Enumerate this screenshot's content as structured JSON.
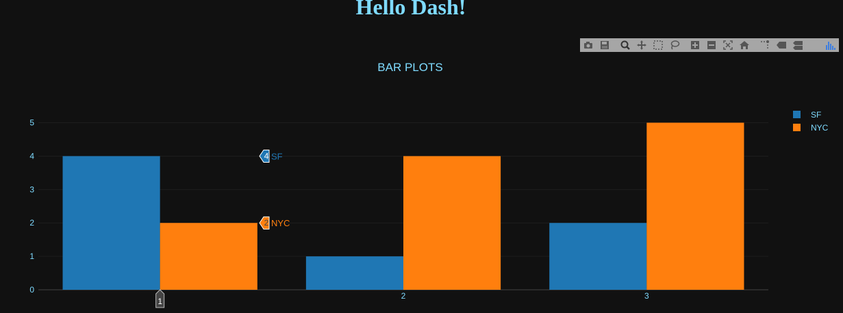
{
  "page": {
    "heading": "Hello Dash!"
  },
  "modebar": {
    "groups": [
      [
        "camera-icon",
        "save-icon"
      ],
      [
        "zoom-icon",
        "pan-icon",
        "box-select-icon",
        "lasso-select-icon"
      ],
      [
        "zoom-in-icon",
        "zoom-out-icon",
        "autoscale-icon",
        "reset-axes-icon"
      ],
      [
        "spike-lines-icon",
        "hover-closest-icon",
        "hover-compare-icon"
      ],
      [
        "plotly-logo-icon"
      ]
    ]
  },
  "colors": {
    "background": "#111111",
    "text": "#7fdbff",
    "sf": "#1f77b4",
    "nyc": "#ff7f0e",
    "grid": "#1e1e1e",
    "axis_line": "#444444"
  },
  "chart_data": {
    "type": "bar",
    "title": "BAR PLOTS",
    "categories": [
      "1",
      "2",
      "3"
    ],
    "series": [
      {
        "name": "SF",
        "values": [
          4,
          1,
          2
        ]
      },
      {
        "name": "NYC",
        "values": [
          2,
          4,
          5
        ]
      }
    ],
    "ylim": [
      0,
      5.4
    ],
    "yticks": [
      0,
      1,
      2,
      3,
      4,
      5
    ],
    "grid": true,
    "legend": "right",
    "hover": {
      "category_label": "1",
      "labels": [
        {
          "value": "4",
          "name": "SF"
        },
        {
          "value": "2",
          "name": "NYC"
        }
      ]
    }
  }
}
